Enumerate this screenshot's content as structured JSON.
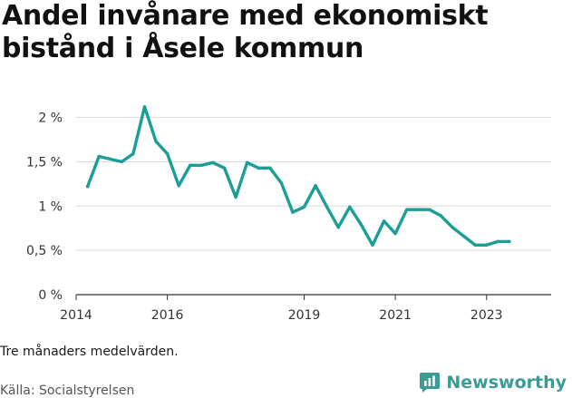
{
  "title": "Andel invånare med ekonomiskt bistånd i Åsele kommun",
  "note": "Tre månaders medelvärden.",
  "source": "Källa: Socialstyrelsen",
  "brand": {
    "name": "Newsworthy",
    "icon": "newsworthy-logo-icon",
    "color": "#3a9c95"
  },
  "chart_data": {
    "type": "line",
    "title": "Andel invånare med ekonomiskt bistånd i Åsele kommun",
    "xlabel": "",
    "ylabel": "",
    "line_color": "#1a9e96",
    "grid": true,
    "xlim": [
      "2014-01",
      "2024-06"
    ],
    "ylim": [
      0,
      2.2
    ],
    "y_ticks": [
      {
        "value": 0,
        "label": "0 %"
      },
      {
        "value": 0.5,
        "label": "0,5 %"
      },
      {
        "value": 1,
        "label": "1 %"
      },
      {
        "value": 1.5,
        "label": "1,5 %"
      },
      {
        "value": 2,
        "label": "2 %"
      }
    ],
    "x_ticks": [
      {
        "value": "2014-01",
        "label": "2014"
      },
      {
        "value": "2016-01",
        "label": "2016"
      },
      {
        "value": "2019-01",
        "label": "2019"
      },
      {
        "value": "2021-01",
        "label": "2021"
      },
      {
        "value": "2023-01",
        "label": "2023"
      }
    ],
    "series": [
      {
        "points": [
          [
            "2014-04",
            1.22
          ],
          [
            "2014-07",
            1.56
          ],
          [
            "2014-10",
            1.53
          ],
          [
            "2015-01",
            1.5
          ],
          [
            "2015-04",
            1.59
          ],
          [
            "2015-07",
            2.12
          ],
          [
            "2015-10",
            1.73
          ],
          [
            "2016-01",
            1.59
          ],
          [
            "2016-04",
            1.23
          ],
          [
            "2016-07",
            1.46
          ],
          [
            "2016-10",
            1.46
          ],
          [
            "2017-01",
            1.49
          ],
          [
            "2017-04",
            1.43
          ],
          [
            "2017-07",
            1.1
          ],
          [
            "2017-10",
            1.49
          ],
          [
            "2018-01",
            1.43
          ],
          [
            "2018-04",
            1.43
          ],
          [
            "2018-07",
            1.26
          ],
          [
            "2018-10",
            0.93
          ],
          [
            "2019-01",
            0.99
          ],
          [
            "2019-04",
            1.23
          ],
          [
            "2019-07",
            0.99
          ],
          [
            "2019-10",
            0.76
          ],
          [
            "2020-01",
            0.99
          ],
          [
            "2020-04",
            0.79
          ],
          [
            "2020-07",
            0.56
          ],
          [
            "2020-10",
            0.83
          ],
          [
            "2021-01",
            0.69
          ],
          [
            "2021-04",
            0.96
          ],
          [
            "2021-07",
            0.96
          ],
          [
            "2021-10",
            0.96
          ],
          [
            "2022-01",
            0.89
          ],
          [
            "2022-04",
            0.76
          ],
          [
            "2022-07",
            0.66
          ],
          [
            "2022-10",
            0.56
          ],
          [
            "2023-01",
            0.56
          ],
          [
            "2023-04",
            0.6
          ],
          [
            "2023-07",
            0.6
          ]
        ]
      }
    ]
  }
}
